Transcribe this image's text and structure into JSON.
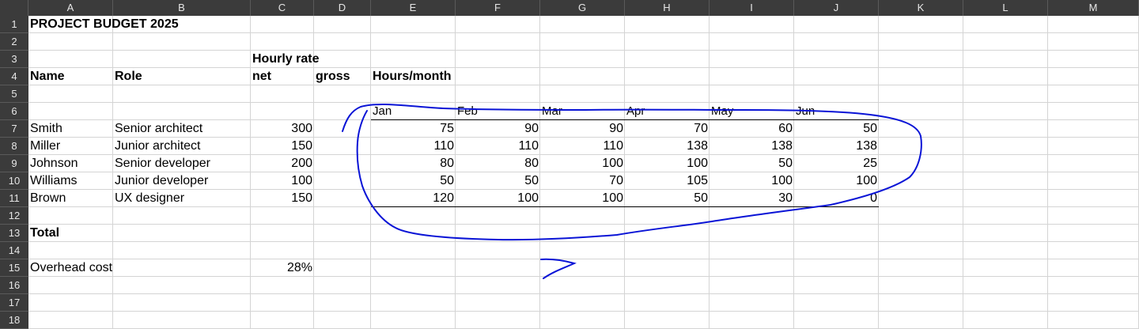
{
  "columns": [
    "A",
    "B",
    "C",
    "D",
    "E",
    "F",
    "G",
    "H",
    "I",
    "J",
    "K",
    "L",
    "M"
  ],
  "rows": [
    "1",
    "2",
    "3",
    "4",
    "5",
    "6",
    "7",
    "8",
    "9",
    "10",
    "11",
    "12",
    "13",
    "14",
    "15",
    "16",
    "17",
    "18"
  ],
  "title": "PROJECT BUDGET 2025",
  "headers": {
    "hourly_rate": "Hourly rate",
    "name": "Name",
    "role": "Role",
    "net": "net",
    "gross": "gross",
    "hours_month": "Hours/month"
  },
  "months": [
    "Jan",
    "Feb",
    "Mar",
    "Apr",
    "May",
    "Jun"
  ],
  "people": [
    {
      "name": "Smith",
      "role": "Senior architect",
      "rate": "300",
      "hours": [
        "75",
        "90",
        "90",
        "70",
        "60",
        "50"
      ]
    },
    {
      "name": "Miller",
      "role": "Junior architect",
      "rate": "150",
      "hours": [
        "110",
        "110",
        "110",
        "138",
        "138",
        "138"
      ]
    },
    {
      "name": "Johnson",
      "role": "Senior developer",
      "rate": "200",
      "hours": [
        "80",
        "80",
        "100",
        "100",
        "50",
        "25"
      ]
    },
    {
      "name": "Williams",
      "role": "Junior developer",
      "rate": "100",
      "hours": [
        "50",
        "50",
        "70",
        "105",
        "100",
        "100"
      ]
    },
    {
      "name": "Brown",
      "role": "UX designer",
      "rate": "150",
      "hours": [
        "120",
        "100",
        "100",
        "50",
        "30",
        "0"
      ]
    }
  ],
  "total_label": "Total",
  "overhead_label": "Overhead cost",
  "overhead_value": "28%",
  "colors": {
    "header_bg": "#3b3b3b",
    "grid": "#d4d4d4",
    "ink": "#0a14d6"
  }
}
